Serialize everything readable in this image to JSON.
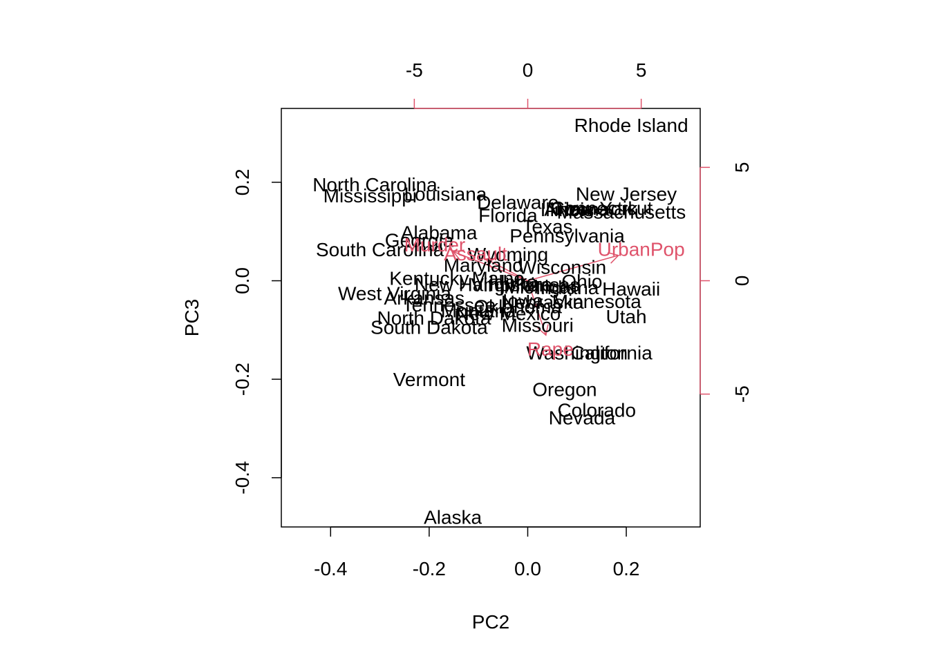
{
  "chart_data": {
    "type": "scatter",
    "subtype": "biplot",
    "title": "",
    "xlabel": "PC2",
    "ylabel": "PC3",
    "xlim": [
      -0.5,
      0.35
    ],
    "ylim": [
      -0.5,
      0.35
    ],
    "xticks": [
      "-0.4",
      "-0.2",
      "0.0",
      "0.2"
    ],
    "xtick_values": [
      -0.4,
      -0.2,
      0.0,
      0.2
    ],
    "yticks": [
      "-0.4",
      "-0.2",
      "0.0",
      "0.2"
    ],
    "ytick_values": [
      -0.4,
      -0.2,
      0.0,
      0.2
    ],
    "secondary_axes": {
      "color": "#DF536B",
      "top_lim": [
        -10.86,
        7.6
      ],
      "right_lim": [
        -10.86,
        7.6
      ],
      "top_ticks": [
        "-5",
        "0",
        "5"
      ],
      "top_tick_values": [
        -5,
        0,
        5
      ],
      "right_ticks": [
        "-5",
        "0",
        "5"
      ],
      "right_tick_values": [
        -5,
        0,
        5
      ]
    },
    "observations": [
      {
        "name": "Rhode Island",
        "x": 0.21,
        "y": 0.316
      },
      {
        "name": "North Carolina",
        "x": -0.31,
        "y": 0.196
      },
      {
        "name": "Mississippi",
        "x": -0.32,
        "y": 0.173
      },
      {
        "name": "Louisiana",
        "x": -0.167,
        "y": 0.177
      },
      {
        "name": "Delaware",
        "x": -0.02,
        "y": 0.16
      },
      {
        "name": "New Jersey",
        "x": 0.2,
        "y": 0.177
      },
      {
        "name": "Connecticut",
        "x": 0.15,
        "y": 0.148
      },
      {
        "name": "Massachusetts",
        "x": 0.19,
        "y": 0.14
      },
      {
        "name": "Arizona",
        "x": 0.1,
        "y": 0.146
      },
      {
        "name": "Illinois",
        "x": 0.08,
        "y": 0.145
      },
      {
        "name": "New York",
        "x": 0.14,
        "y": 0.147
      },
      {
        "name": "Florida",
        "x": -0.04,
        "y": 0.133
      },
      {
        "name": "Texas",
        "x": 0.04,
        "y": 0.111
      },
      {
        "name": "Alabama",
        "x": -0.18,
        "y": 0.098
      },
      {
        "name": "Pennsylvania",
        "x": 0.08,
        "y": 0.092
      },
      {
        "name": "Georgia",
        "x": -0.22,
        "y": 0.083
      },
      {
        "name": "South Carolina",
        "x": -0.3,
        "y": 0.064
      },
      {
        "name": "Wyoming",
        "x": -0.04,
        "y": 0.054
      },
      {
        "name": "Maryland",
        "x": -0.09,
        "y": 0.032
      },
      {
        "name": "Wisconsin",
        "x": 0.07,
        "y": 0.028
      },
      {
        "name": "Kentucky",
        "x": -0.2,
        "y": 0.006
      },
      {
        "name": "Maine",
        "x": -0.06,
        "y": 0.006
      },
      {
        "name": "Idaho",
        "x": -0.03,
        "y": -0.002
      },
      {
        "name": "Ohio",
        "x": 0.11,
        "y": -0.001
      },
      {
        "name": "Virginia",
        "x": -0.05,
        "y": -0.008
      },
      {
        "name": "Michigan",
        "x": 0.03,
        "y": -0.012
      },
      {
        "name": "Indiana",
        "x": 0.08,
        "y": -0.013
      },
      {
        "name": "Kansas",
        "x": 0.04,
        "y": -0.008
      },
      {
        "name": "Hawaii",
        "x": 0.21,
        "y": -0.016
      },
      {
        "name": "New Hampshire",
        "x": -0.09,
        "y": -0.007
      },
      {
        "name": "West Virginia",
        "x": -0.27,
        "y": -0.025
      },
      {
        "name": "Arkansas",
        "x": -0.21,
        "y": -0.034
      },
      {
        "name": "Minnesota",
        "x": 0.14,
        "y": -0.041
      },
      {
        "name": "Iowa",
        "x": -0.01,
        "y": -0.04
      },
      {
        "name": "Nebraska",
        "x": 0.03,
        "y": -0.043
      },
      {
        "name": "Tennessee",
        "x": -0.16,
        "y": -0.048
      },
      {
        "name": "Oklahoma",
        "x": -0.02,
        "y": -0.052
      },
      {
        "name": "Montana",
        "x": -0.1,
        "y": -0.06
      },
      {
        "name": "Utah",
        "x": 0.2,
        "y": -0.072
      },
      {
        "name": "New Mexico",
        "x": -0.04,
        "y": -0.066
      },
      {
        "name": "North Dakota",
        "x": -0.19,
        "y": -0.075
      },
      {
        "name": "South Dakota",
        "x": -0.2,
        "y": -0.094
      },
      {
        "name": "Missouri",
        "x": 0.02,
        "y": -0.09
      },
      {
        "name": "Washington",
        "x": 0.1,
        "y": -0.146
      },
      {
        "name": "California",
        "x": 0.17,
        "y": -0.146
      },
      {
        "name": "Vermont",
        "x": -0.2,
        "y": -0.2
      },
      {
        "name": "Oregon",
        "x": 0.075,
        "y": -0.22
      },
      {
        "name": "Colorado",
        "x": 0.14,
        "y": -0.262
      },
      {
        "name": "Nevada",
        "x": 0.11,
        "y": -0.278
      },
      {
        "name": "Alaska",
        "x": -0.152,
        "y": -0.48
      }
    ],
    "variables": [
      {
        "name": "Murder",
        "x": -4.1,
        "y": 1.6
      },
      {
        "name": "Assault",
        "x": -2.3,
        "y": 1.2
      },
      {
        "name": "UrbanPop",
        "x": 5.0,
        "y": 1.4
      },
      {
        "name": "Rape",
        "x": 1.0,
        "y": -3.0
      }
    ]
  }
}
